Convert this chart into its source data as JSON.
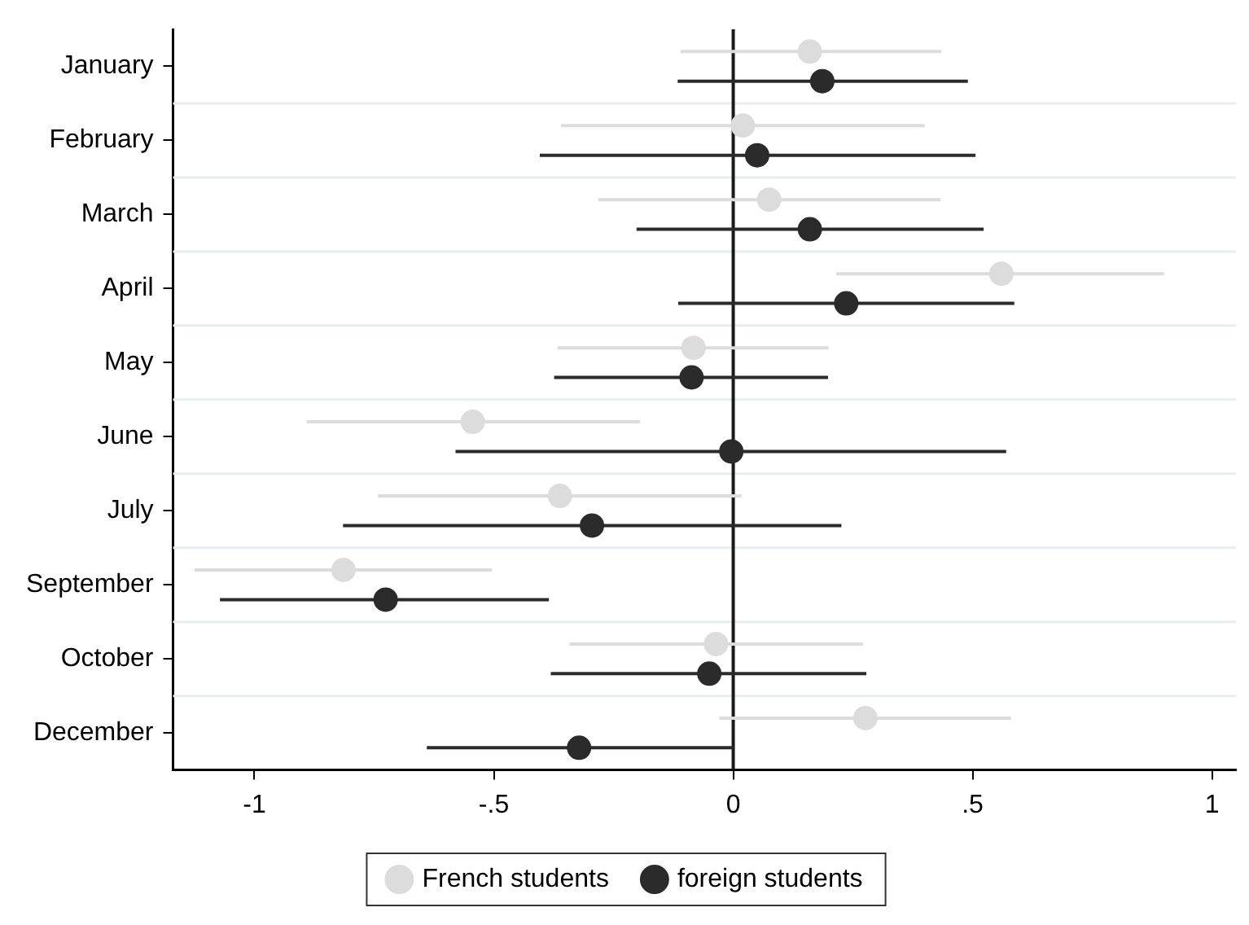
{
  "chart_data": {
    "type": "scatter",
    "orientation": "horizontal",
    "categories": [
      "January",
      "February",
      "March",
      "April",
      "May",
      "June",
      "July",
      "September",
      "October",
      "December"
    ],
    "series": [
      {
        "name": "French students",
        "color": "#dcdcdc",
        "values": [
          0.16,
          0.02,
          0.075,
          0.56,
          -0.083,
          -0.544,
          -0.362,
          -0.814,
          -0.036,
          0.276
        ],
        "errors": [
          [
            -0.11,
            0.435
          ],
          [
            -0.36,
            0.4
          ],
          [
            -0.282,
            0.433
          ],
          [
            0.215,
            0.9
          ],
          [
            -0.367,
            0.199
          ],
          [
            -0.891,
            -0.195
          ],
          [
            -0.742,
            0.017
          ],
          [
            -1.125,
            -0.504
          ],
          [
            -0.342,
            0.271
          ],
          [
            -0.029,
            0.58
          ]
        ]
      },
      {
        "name": "foreign students",
        "color": "#2b2b2b",
        "values": [
          0.186,
          0.05,
          0.16,
          0.236,
          -0.087,
          -0.004,
          -0.295,
          -0.726,
          -0.05,
          -0.322
        ],
        "errors": [
          [
            -0.116,
            0.49
          ],
          [
            -0.404,
            0.506
          ],
          [
            -0.202,
            0.523
          ],
          [
            -0.115,
            0.587
          ],
          [
            -0.374,
            0.198
          ],
          [
            -0.58,
            0.57
          ],
          [
            -0.815,
            0.226
          ],
          [
            -1.072,
            -0.385
          ],
          [
            -0.381,
            0.278
          ],
          [
            -0.64,
            0
          ]
        ]
      }
    ],
    "xlim": [
      -1.17,
      1.05
    ],
    "xticks": [
      -1,
      {
        "value": -0.5,
        "label": "-.5"
      },
      0,
      {
        "value": 0.5,
        "label": ".5"
      },
      1
    ],
    "ref_lines": [
      {
        "axis": "x",
        "value": 0,
        "color": "#1a1a1a"
      }
    ],
    "grid": "y",
    "legend": "bottom",
    "marker": "circle"
  }
}
